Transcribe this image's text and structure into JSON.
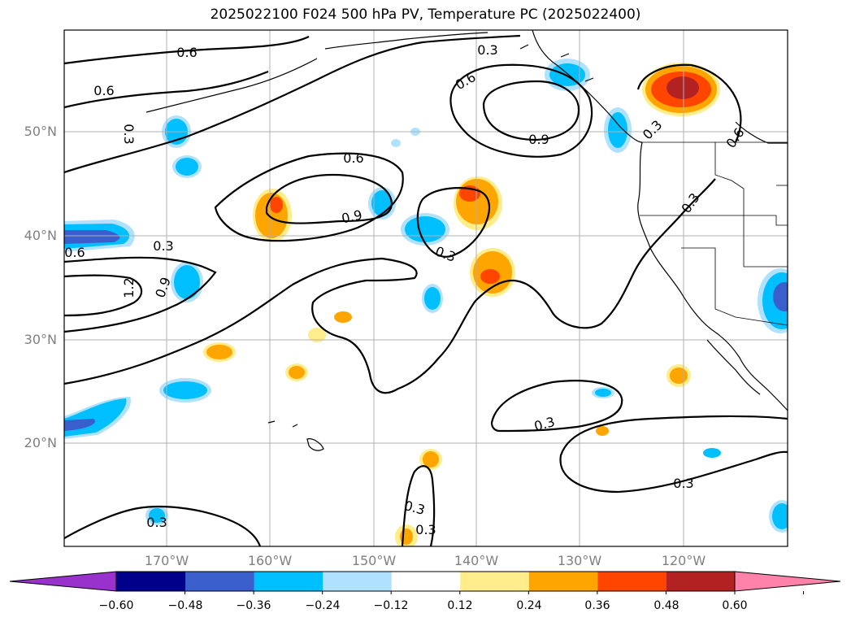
{
  "title": "2025022100 F024 500 hPa PV, Temperature PC (2025022400)",
  "lat_labels": [
    "50°N",
    "40°N",
    "30°N",
    "20°N"
  ],
  "lon_labels": [
    "170°W",
    "160°W",
    "150°W",
    "140°W",
    "130°W",
    "120°W"
  ],
  "contour_labels": [
    "0.6",
    "0.6",
    "0.3",
    "0.6",
    "0.3",
    "0.9",
    "0.6",
    "0.9",
    "0.3",
    "0.3",
    "0.6",
    "0.3",
    "0.9",
    "1.2",
    "0.6",
    "0.3",
    "0.3",
    "0.3",
    "0.3",
    "0.3",
    "0.3"
  ],
  "colorbar": {
    "ticks": [
      "−0.60",
      "−0.48",
      "−0.36",
      "−0.24",
      "−0.12",
      "0.12",
      "0.24",
      "0.36",
      "0.48",
      "0.60"
    ],
    "colors": [
      "#9932cc",
      "#00008b",
      "#3a5fcd",
      "#00bfff",
      "#b0e2ff",
      "#ffffff",
      "#ffec8b",
      "#ffa500",
      "#ff4500",
      "#b22222",
      "#ff82ab"
    ]
  },
  "anomaly_colors": {
    "neg_light": "#b0e2ff",
    "neg_mid": "#00bfff",
    "neg_strong": "#3a5fcd",
    "neg_max": "#00008b",
    "pos_light": "#ffec8b",
    "pos_mid": "#ffa500",
    "pos_strong": "#ff4500",
    "pos_max": "#b22222"
  }
}
